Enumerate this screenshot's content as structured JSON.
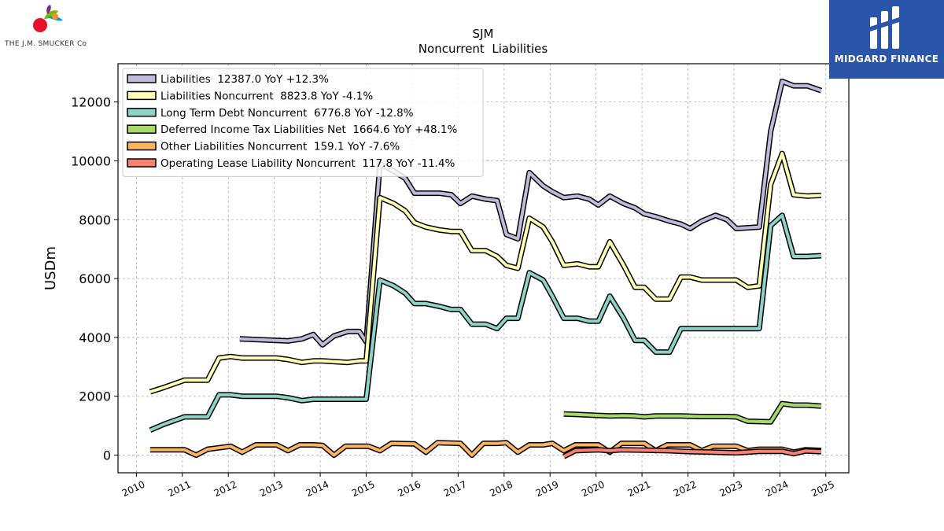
{
  "logos": {
    "left_text": "THE J.M. SMUCKER Co",
    "right_text": "MIDGARD FINANCE"
  },
  "chart_data": {
    "type": "line",
    "title": "SJM",
    "subtitle": "Noncurrent  Liabilities",
    "xlabel": "",
    "ylabel": "USDm",
    "xlim": [
      2009.6,
      2025.5
    ],
    "ylim": [
      -600,
      13300
    ],
    "x_ticks": [
      2010,
      2011,
      2012,
      2013,
      2014,
      2015,
      2016,
      2017,
      2018,
      2019,
      2020,
      2021,
      2022,
      2023,
      2024,
      2025
    ],
    "y_ticks": [
      0,
      2000,
      4000,
      6000,
      8000,
      10000,
      12000
    ],
    "grid": true,
    "legend_position": "top-left",
    "series": [
      {
        "name": "Liabilities  12387.0 YoY +12.3%",
        "color": "#bebada",
        "points": [
          [
            2012.25,
            3950
          ],
          [
            2013.3,
            3880
          ],
          [
            2013.6,
            3950
          ],
          [
            2013.85,
            4100
          ],
          [
            2014.05,
            3750
          ],
          [
            2014.3,
            4050
          ],
          [
            2014.6,
            4200
          ],
          [
            2014.85,
            4200
          ],
          [
            2015.0,
            3850
          ],
          [
            2015.3,
            9900
          ],
          [
            2015.6,
            9650
          ],
          [
            2015.85,
            9400
          ],
          [
            2016.05,
            8900
          ],
          [
            2016.6,
            8900
          ],
          [
            2016.85,
            8850
          ],
          [
            2017.05,
            8550
          ],
          [
            2017.3,
            8800
          ],
          [
            2017.6,
            8700
          ],
          [
            2017.85,
            8650
          ],
          [
            2018.05,
            7500
          ],
          [
            2018.3,
            7350
          ],
          [
            2018.55,
            9600
          ],
          [
            2018.85,
            9150
          ],
          [
            2019.05,
            8950
          ],
          [
            2019.3,
            8750
          ],
          [
            2019.6,
            8800
          ],
          [
            2019.85,
            8700
          ],
          [
            2020.05,
            8500
          ],
          [
            2020.3,
            8800
          ],
          [
            2020.6,
            8550
          ],
          [
            2020.85,
            8400
          ],
          [
            2021.05,
            8200
          ],
          [
            2021.3,
            8100
          ],
          [
            2021.6,
            7950
          ],
          [
            2021.85,
            7850
          ],
          [
            2022.05,
            7700
          ],
          [
            2022.3,
            7950
          ],
          [
            2022.6,
            8150
          ],
          [
            2022.85,
            8000
          ],
          [
            2023.05,
            7700
          ],
          [
            2023.55,
            7750
          ],
          [
            2023.8,
            11000
          ],
          [
            2024.05,
            12700
          ],
          [
            2024.3,
            12550
          ],
          [
            2024.6,
            12550
          ],
          [
            2024.9,
            12387
          ]
        ]
      },
      {
        "name": "Liabilities Noncurrent  8823.8 YoY -4.1%",
        "color": "#ffffb3",
        "points": [
          [
            2010.3,
            2150
          ],
          [
            2010.6,
            2300
          ],
          [
            2011.05,
            2550
          ],
          [
            2011.55,
            2550
          ],
          [
            2011.8,
            3300
          ],
          [
            2012.05,
            3350
          ],
          [
            2012.3,
            3300
          ],
          [
            2012.6,
            3300
          ],
          [
            2012.85,
            3300
          ],
          [
            2013.05,
            3300
          ],
          [
            2013.3,
            3250
          ],
          [
            2013.6,
            3150
          ],
          [
            2013.85,
            3200
          ],
          [
            2014.05,
            3200
          ],
          [
            2014.6,
            3150
          ],
          [
            2014.85,
            3200
          ],
          [
            2015.0,
            3200
          ],
          [
            2015.3,
            8750
          ],
          [
            2015.6,
            8550
          ],
          [
            2015.85,
            8300
          ],
          [
            2016.05,
            7900
          ],
          [
            2016.3,
            7750
          ],
          [
            2016.6,
            7650
          ],
          [
            2016.85,
            7600
          ],
          [
            2017.05,
            7600
          ],
          [
            2017.3,
            6950
          ],
          [
            2017.6,
            6950
          ],
          [
            2017.85,
            6750
          ],
          [
            2018.05,
            6450
          ],
          [
            2018.3,
            6350
          ],
          [
            2018.55,
            8050
          ],
          [
            2018.85,
            7750
          ],
          [
            2019.05,
            7250
          ],
          [
            2019.3,
            6450
          ],
          [
            2019.6,
            6500
          ],
          [
            2019.85,
            6400
          ],
          [
            2020.05,
            6400
          ],
          [
            2020.3,
            7250
          ],
          [
            2020.6,
            6450
          ],
          [
            2020.85,
            5700
          ],
          [
            2021.05,
            5700
          ],
          [
            2021.3,
            5300
          ],
          [
            2021.6,
            5300
          ],
          [
            2021.85,
            6050
          ],
          [
            2022.05,
            6050
          ],
          [
            2022.3,
            5950
          ],
          [
            2022.6,
            5950
          ],
          [
            2022.85,
            5950
          ],
          [
            2023.05,
            5950
          ],
          [
            2023.3,
            5700
          ],
          [
            2023.55,
            5750
          ],
          [
            2023.8,
            9200
          ],
          [
            2024.05,
            10250
          ],
          [
            2024.3,
            8850
          ],
          [
            2024.6,
            8800
          ],
          [
            2024.9,
            8824
          ]
        ]
      },
      {
        "name": "Long Term Debt Noncurrent  6776.8 YoY -12.8%",
        "color": "#8dd3c7",
        "points": [
          [
            2010.3,
            850
          ],
          [
            2010.6,
            1050
          ],
          [
            2011.05,
            1300
          ],
          [
            2011.55,
            1300
          ],
          [
            2011.8,
            2050
          ],
          [
            2012.05,
            2050
          ],
          [
            2012.3,
            2000
          ],
          [
            2012.6,
            2000
          ],
          [
            2012.85,
            2000
          ],
          [
            2013.05,
            2000
          ],
          [
            2013.3,
            1950
          ],
          [
            2013.6,
            1850
          ],
          [
            2013.85,
            1900
          ],
          [
            2014.05,
            1900
          ],
          [
            2014.6,
            1900
          ],
          [
            2014.85,
            1900
          ],
          [
            2015.0,
            1900
          ],
          [
            2015.3,
            5950
          ],
          [
            2015.6,
            5750
          ],
          [
            2015.85,
            5500
          ],
          [
            2016.05,
            5150
          ],
          [
            2016.3,
            5150
          ],
          [
            2016.6,
            5050
          ],
          [
            2016.85,
            4950
          ],
          [
            2017.05,
            4950
          ],
          [
            2017.3,
            4450
          ],
          [
            2017.6,
            4450
          ],
          [
            2017.85,
            4300
          ],
          [
            2018.05,
            4650
          ],
          [
            2018.3,
            4650
          ],
          [
            2018.55,
            6200
          ],
          [
            2018.85,
            5950
          ],
          [
            2019.05,
            5400
          ],
          [
            2019.3,
            4650
          ],
          [
            2019.6,
            4650
          ],
          [
            2019.85,
            4550
          ],
          [
            2020.05,
            4550
          ],
          [
            2020.3,
            5400
          ],
          [
            2020.6,
            4650
          ],
          [
            2020.85,
            3900
          ],
          [
            2021.05,
            3900
          ],
          [
            2021.3,
            3500
          ],
          [
            2021.6,
            3500
          ],
          [
            2021.85,
            4300
          ],
          [
            2022.05,
            4300
          ],
          [
            2022.6,
            4300
          ],
          [
            2023.05,
            4300
          ],
          [
            2023.55,
            4300
          ],
          [
            2023.8,
            7800
          ],
          [
            2024.05,
            8150
          ],
          [
            2024.3,
            6750
          ],
          [
            2024.6,
            6750
          ],
          [
            2024.9,
            6777
          ]
        ]
      },
      {
        "name": "Deferred Income Tax Liabilities Net  1664.6 YoY +48.1%",
        "color": "#a6d96a",
        "points": [
          [
            2019.3,
            1400
          ],
          [
            2019.6,
            1380
          ],
          [
            2020.05,
            1350
          ],
          [
            2020.3,
            1330
          ],
          [
            2020.6,
            1340
          ],
          [
            2020.85,
            1330
          ],
          [
            2021.05,
            1300
          ],
          [
            2021.3,
            1330
          ],
          [
            2021.6,
            1330
          ],
          [
            2021.85,
            1330
          ],
          [
            2022.3,
            1310
          ],
          [
            2022.85,
            1310
          ],
          [
            2023.05,
            1300
          ],
          [
            2023.3,
            1150
          ],
          [
            2023.8,
            1130
          ],
          [
            2024.05,
            1750
          ],
          [
            2024.3,
            1700
          ],
          [
            2024.6,
            1700
          ],
          [
            2024.9,
            1665
          ]
        ]
      },
      {
        "name": "Other Liabilities Noncurrent  159.1 YoY -7.6%",
        "color": "#fdb462",
        "points": [
          [
            2010.3,
            180
          ],
          [
            2011.05,
            180
          ],
          [
            2011.3,
            0
          ],
          [
            2011.55,
            200
          ],
          [
            2011.8,
            250
          ],
          [
            2012.05,
            300
          ],
          [
            2012.3,
            100
          ],
          [
            2012.6,
            350
          ],
          [
            2013.05,
            350
          ],
          [
            2013.3,
            150
          ],
          [
            2013.55,
            350
          ],
          [
            2013.85,
            350
          ],
          [
            2014.05,
            330
          ],
          [
            2014.3,
            0
          ],
          [
            2014.55,
            300
          ],
          [
            2014.85,
            300
          ],
          [
            2015.05,
            300
          ],
          [
            2015.3,
            150
          ],
          [
            2015.55,
            400
          ],
          [
            2016.05,
            380
          ],
          [
            2016.3,
            100
          ],
          [
            2016.55,
            420
          ],
          [
            2017.05,
            400
          ],
          [
            2017.3,
            0
          ],
          [
            2017.55,
            400
          ],
          [
            2017.85,
            400
          ],
          [
            2018.05,
            420
          ],
          [
            2018.3,
            100
          ],
          [
            2018.55,
            350
          ],
          [
            2018.85,
            350
          ],
          [
            2019.05,
            400
          ],
          [
            2019.3,
            150
          ],
          [
            2019.55,
            350
          ],
          [
            2020.05,
            350
          ],
          [
            2020.3,
            100
          ],
          [
            2020.55,
            400
          ],
          [
            2020.85,
            400
          ],
          [
            2021.05,
            400
          ],
          [
            2021.3,
            150
          ],
          [
            2021.55,
            350
          ],
          [
            2022.05,
            350
          ],
          [
            2022.3,
            150
          ],
          [
            2022.55,
            300
          ],
          [
            2023.05,
            300
          ],
          [
            2023.3,
            150
          ],
          [
            2023.55,
            200
          ],
          [
            2024.05,
            200
          ],
          [
            2024.3,
            100
          ],
          [
            2024.55,
            180
          ],
          [
            2024.9,
            159
          ]
        ]
      },
      {
        "name": "Operating Lease Liability Noncurrent  117.8 YoY -11.4%",
        "color": "#fb8072",
        "points": [
          [
            2019.3,
            -50
          ],
          [
            2019.55,
            150
          ],
          [
            2020.05,
            180
          ],
          [
            2020.3,
            150
          ],
          [
            2020.55,
            180
          ],
          [
            2021.05,
            170
          ],
          [
            2021.55,
            150
          ],
          [
            2022.05,
            120
          ],
          [
            2022.55,
            100
          ],
          [
            2023.05,
            80
          ],
          [
            2023.55,
            130
          ],
          [
            2024.05,
            130
          ],
          [
            2024.3,
            50
          ],
          [
            2024.55,
            140
          ],
          [
            2024.9,
            118
          ]
        ]
      }
    ]
  }
}
